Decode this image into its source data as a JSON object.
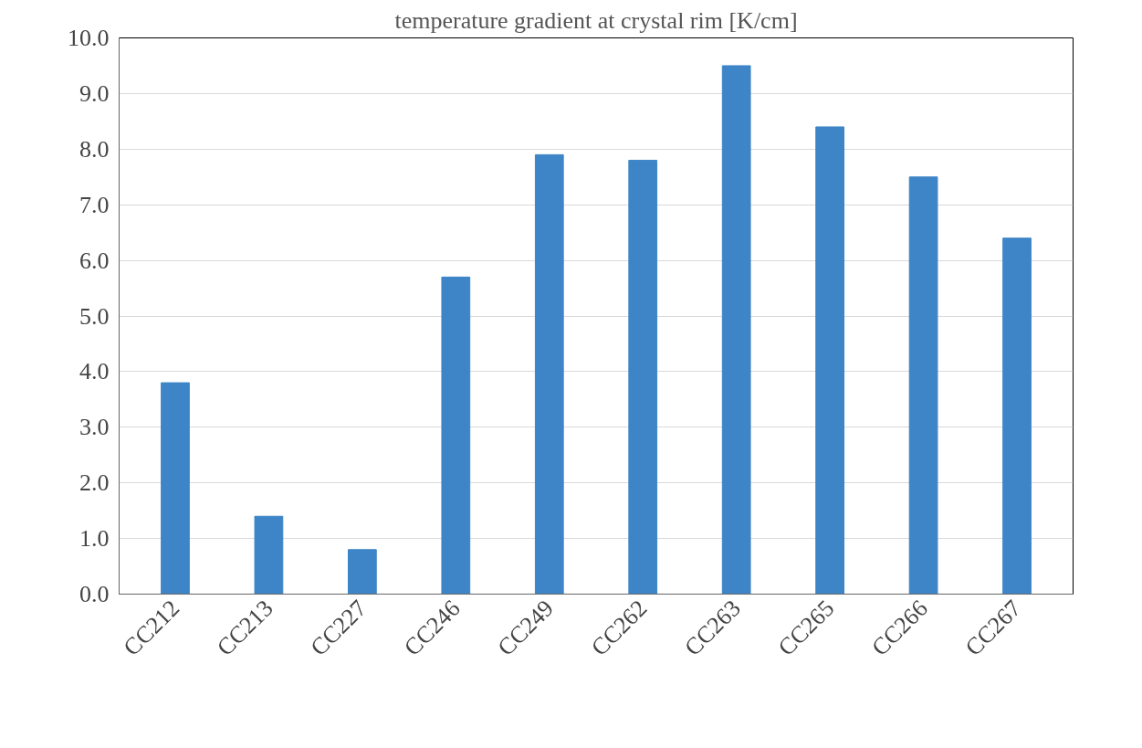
{
  "chart_data": {
    "type": "bar",
    "title": "temperature gradient at crystal rim [K/cm]",
    "categories": [
      "CC212",
      "CC213",
      "CC227",
      "CC246",
      "CC249",
      "CC262",
      "CC263",
      "CC265",
      "CC266",
      "CC267"
    ],
    "values": [
      3.8,
      1.4,
      0.8,
      5.7,
      7.9,
      7.8,
      9.5,
      8.4,
      7.5,
      6.4
    ],
    "color": "#3d85c6",
    "ylim": [
      0,
      10
    ],
    "yticks": [
      {
        "value": 0,
        "label": "0.0"
      },
      {
        "value": 1,
        "label": "1.0"
      },
      {
        "value": 2,
        "label": "2.0"
      },
      {
        "value": 3,
        "label": "3.0"
      },
      {
        "value": 4,
        "label": "4.0"
      },
      {
        "value": 5,
        "label": "5.0"
      },
      {
        "value": 6,
        "label": "6.0"
      },
      {
        "value": 7,
        "label": "7.0"
      },
      {
        "value": 8,
        "label": "8.0"
      },
      {
        "value": 9,
        "label": "9.0"
      },
      {
        "value": 10,
        "label": "10.0"
      }
    ],
    "grid": "y"
  }
}
